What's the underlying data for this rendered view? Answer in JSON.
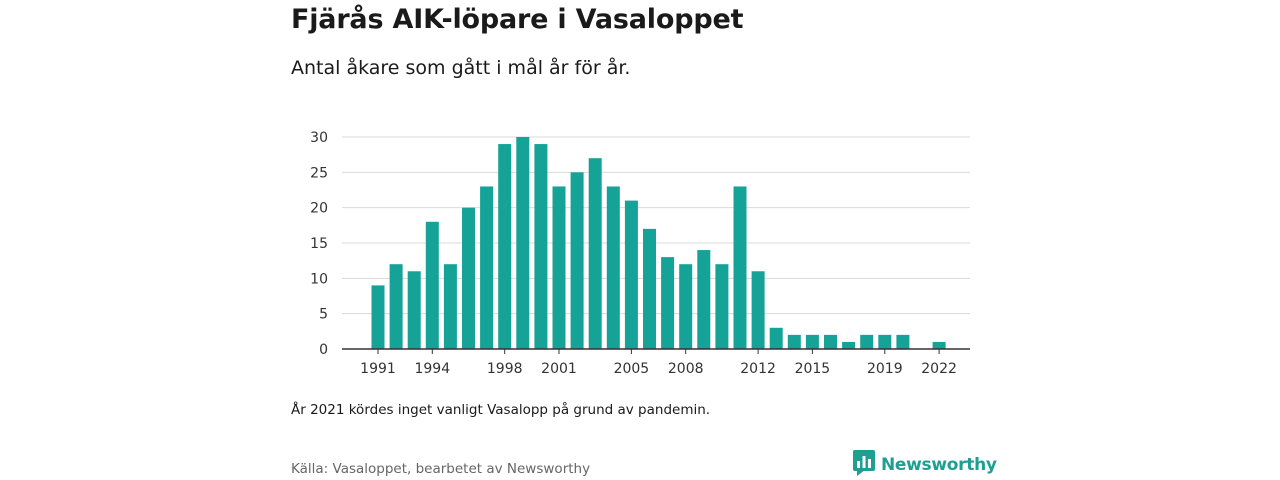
{
  "header": {
    "title": "Fjärås AIK-löpare i Vasaloppet",
    "subtitle": "Antal åkare som gått i mål år för år."
  },
  "note": "År 2021 kördes inget vanligt Vasalopp på grund av pandemin.",
  "footer": {
    "source": "Källa: Vasaloppet, bearbetet av Newsworthy",
    "logo_text": "Newsworthy",
    "logo_icon": "bar-chart-speech-icon"
  },
  "colors": {
    "bar": "#14a396",
    "grid": "#d9d9d9",
    "axis": "#333333",
    "brand": "#1f9e92"
  },
  "chart_data": {
    "type": "bar",
    "title": "Fjärås AIK-löpare i Vasaloppet",
    "subtitle": "Antal åkare som gått i mål år för år.",
    "xlabel": "",
    "ylabel": "",
    "ylim": [
      0,
      30
    ],
    "yticks": [
      0,
      5,
      10,
      15,
      20,
      25,
      30
    ],
    "xticks": [
      "1991",
      "1994",
      "1998",
      "2001",
      "2005",
      "2008",
      "2012",
      "2015",
      "2019",
      "2022"
    ],
    "grid": true,
    "legend": "none",
    "categories": [
      "1991",
      "1992",
      "1993",
      "1994",
      "1995",
      "1996",
      "1997",
      "1998",
      "1999",
      "2000",
      "2001",
      "2002",
      "2003",
      "2004",
      "2005",
      "2006",
      "2007",
      "2008",
      "2009",
      "2010",
      "2011",
      "2012",
      "2013",
      "2014",
      "2015",
      "2016",
      "2017",
      "2018",
      "2019",
      "2020",
      "2021",
      "2022"
    ],
    "values": [
      9,
      12,
      11,
      18,
      12,
      20,
      23,
      29,
      30,
      29,
      23,
      25,
      27,
      23,
      21,
      17,
      13,
      12,
      14,
      12,
      23,
      11,
      3,
      2,
      2,
      2,
      1,
      2,
      2,
      2,
      0,
      1
    ]
  }
}
